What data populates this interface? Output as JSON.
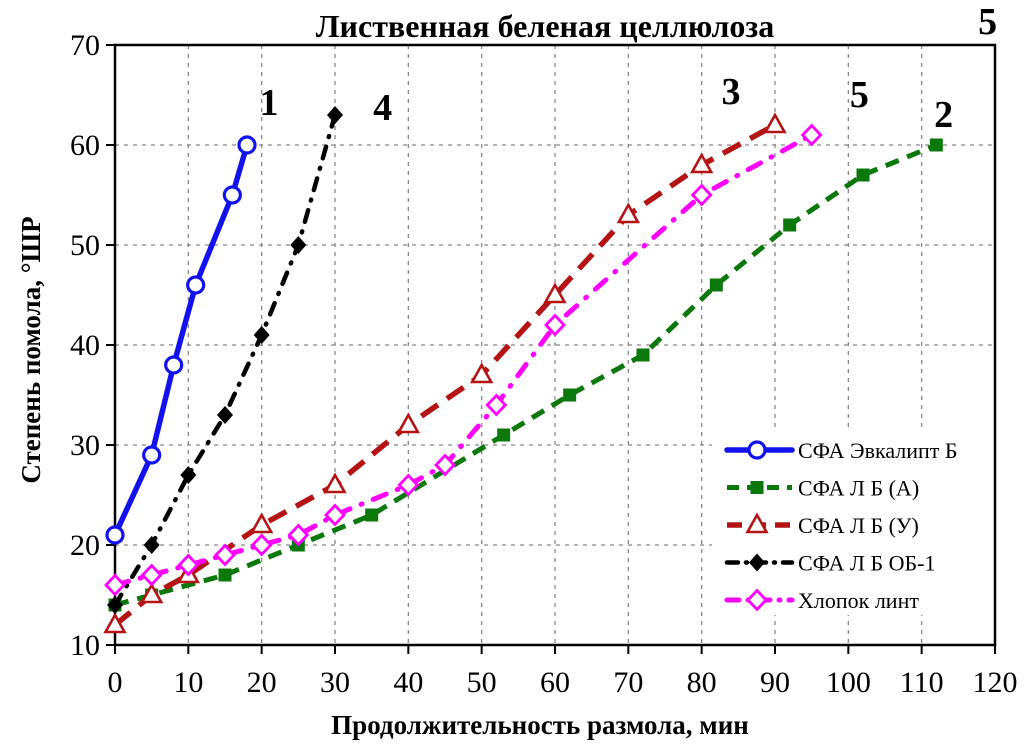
{
  "title": "Лиственная беленая целлюлоза",
  "chart_data": {
    "type": "line",
    "title": "Лиственная беленая целлюлоза",
    "xlabel": "Продолжительность размола, мин",
    "ylabel": "Степень помола, °ШР",
    "xlim": [
      0,
      120
    ],
    "ylim": [
      10,
      70
    ],
    "xticks": [
      0,
      10,
      20,
      30,
      40,
      50,
      60,
      70,
      80,
      90,
      100,
      110,
      120
    ],
    "yticks": [
      10,
      20,
      30,
      40,
      50,
      60,
      70
    ],
    "grid": "dashed both axes",
    "grid_color": "#888888",
    "legend_position": "inside lower right",
    "series": [
      {
        "name": "СФА Эвкалипт Б",
        "number": "1",
        "color": "#1212ee",
        "line": "solid",
        "marker": "open-circle",
        "points": [
          [
            0,
            21
          ],
          [
            5,
            29
          ],
          [
            8,
            38
          ],
          [
            11,
            46
          ],
          [
            16,
            55
          ],
          [
            18,
            60
          ]
        ],
        "number_pos": [
          21,
          64.2
        ]
      },
      {
        "name": "СФА Л Б (А)",
        "number": "2",
        "color": "#0a780a",
        "line": "dashed",
        "marker": "filled-square",
        "points": [
          [
            0,
            14
          ],
          [
            5,
            15
          ],
          [
            15,
            17
          ],
          [
            25,
            20
          ],
          [
            35,
            23
          ],
          [
            53,
            31
          ],
          [
            62,
            35
          ],
          [
            72,
            39
          ],
          [
            82,
            46
          ],
          [
            92,
            52
          ],
          [
            102,
            57
          ],
          [
            112,
            60
          ]
        ],
        "number_pos": [
          113,
          63
        ]
      },
      {
        "name": "СФА Л Б (У)",
        "number": "3",
        "color": "#b41414",
        "line": "long-dash",
        "marker": "open-triangle",
        "points": [
          [
            0,
            12
          ],
          [
            5,
            15
          ],
          [
            10,
            17
          ],
          [
            20,
            22
          ],
          [
            30,
            26
          ],
          [
            40,
            32
          ],
          [
            50,
            37
          ],
          [
            60,
            45
          ],
          [
            70,
            53
          ],
          [
            80,
            58
          ],
          [
            90,
            62
          ]
        ],
        "number_pos": [
          84,
          65.3
        ]
      },
      {
        "name": "СФА Л Б ОБ-1",
        "number": "4",
        "color": "#000000",
        "line": "dash-dot",
        "marker": "filled-diamond",
        "points": [
          [
            0,
            14
          ],
          [
            5,
            20
          ],
          [
            10,
            27
          ],
          [
            15,
            33
          ],
          [
            20,
            41
          ],
          [
            25,
            50
          ],
          [
            30,
            63
          ]
        ],
        "number_pos": [
          36.5,
          63.7
        ]
      },
      {
        "name": "Хлопок линт",
        "number": "5",
        "color": "#ff00ff",
        "line": "dash-dot-long",
        "marker": "open-diamond",
        "points": [
          [
            0,
            16
          ],
          [
            5,
            17
          ],
          [
            10,
            18
          ],
          [
            15,
            19
          ],
          [
            20,
            20
          ],
          [
            25,
            21
          ],
          [
            30,
            23
          ],
          [
            40,
            26
          ],
          [
            45,
            28
          ],
          [
            52,
            34
          ],
          [
            60,
            42
          ],
          [
            80,
            55
          ],
          [
            95,
            61
          ]
        ],
        "number_pos": [
          101.5,
          65
        ],
        "number_pos2": [
          119,
          72.3
        ]
      }
    ]
  }
}
